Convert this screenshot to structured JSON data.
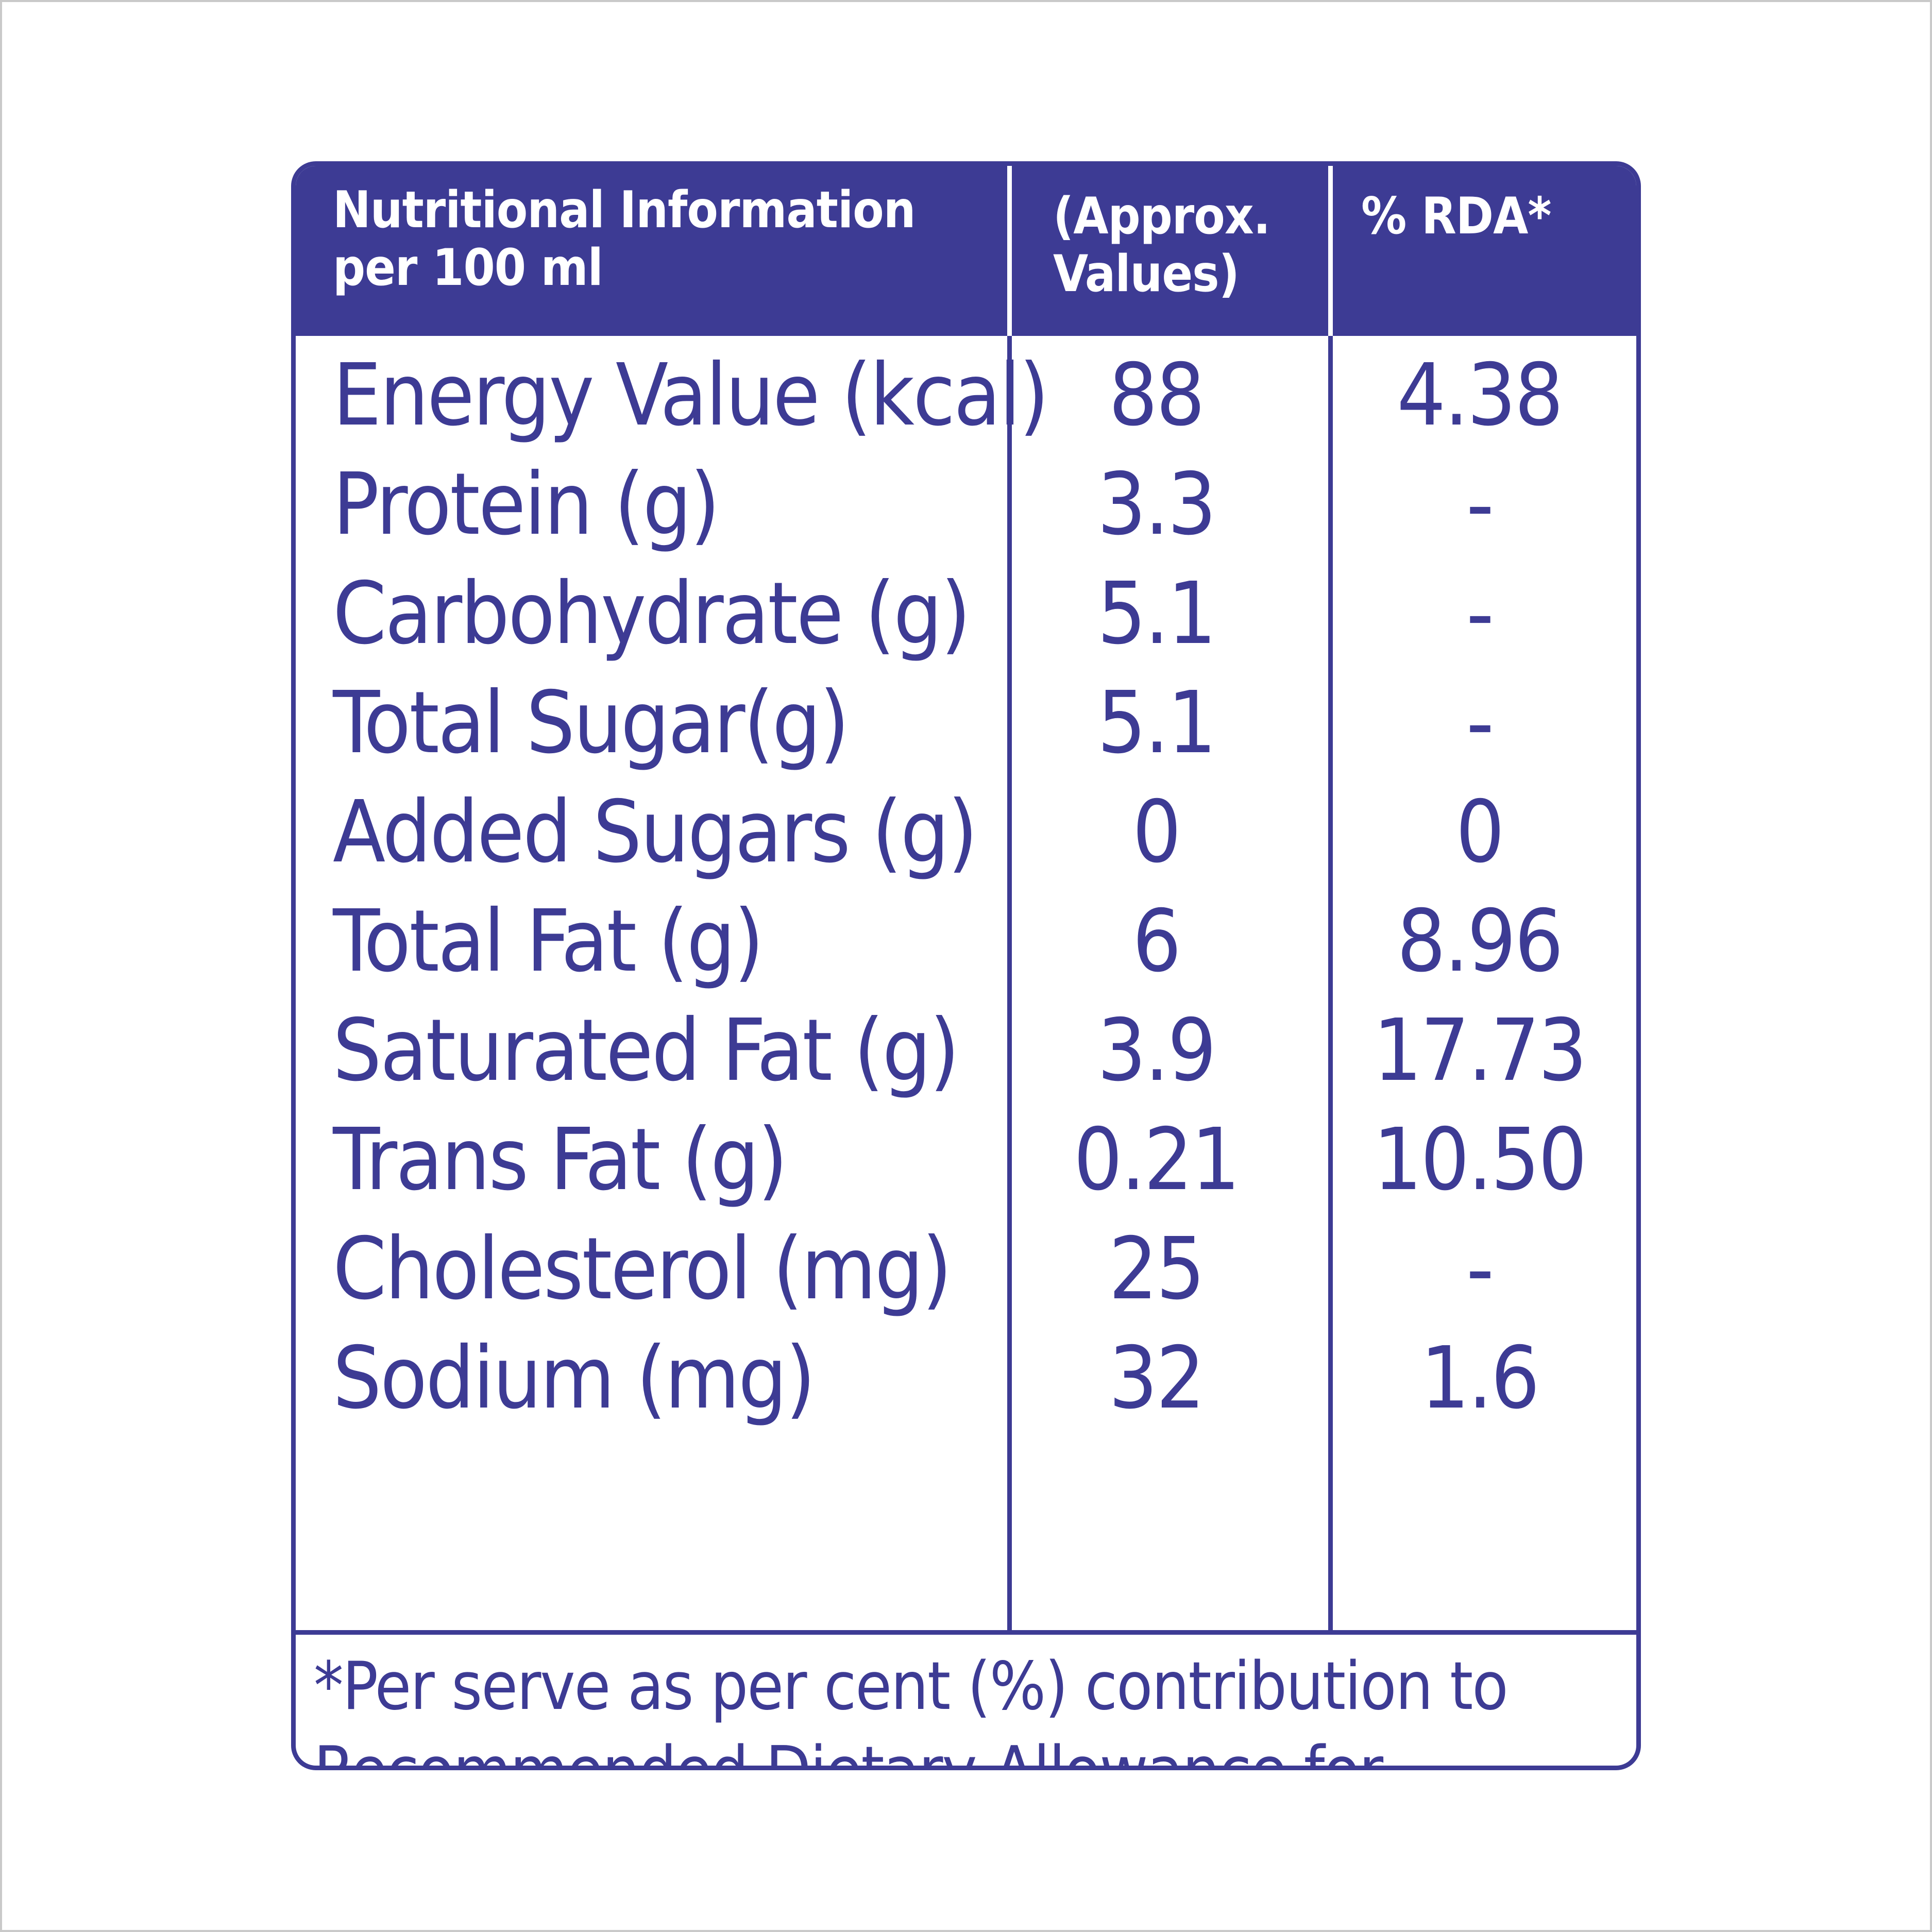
{
  "colors": {
    "brand": "#3d3b94",
    "header_text": "#ffffff",
    "background": "#ffffff"
  },
  "header": {
    "col1_line1": "Nutritional Information",
    "col1_line2": "per 100 ml",
    "col2_line1": "(Approx.",
    "col2_line2": "Values)",
    "col3": "% RDA*"
  },
  "rows": [
    {
      "name": "Energy Value (kcal)",
      "value": "88",
      "rda": "4.38"
    },
    {
      "name": "Protein (g)",
      "value": "3.3",
      "rda": "-"
    },
    {
      "name": "Carbohydrate (g)",
      "value": "5.1",
      "rda": "-"
    },
    {
      "name": "Total Sugar(g)",
      "value": "5.1",
      "rda": "-"
    },
    {
      "name": "Added Sugars (g)",
      "value": "0",
      "rda": "0"
    },
    {
      "name": "Total Fat (g)",
      "value": "6",
      "rda": "8.96"
    },
    {
      "name": "Saturated Fat (g)",
      "value": "3.9",
      "rda": "17.73"
    },
    {
      "name": "Trans Fat (g)",
      "value": "0.21",
      "rda": "10.50"
    },
    {
      "name": "Cholesterol (mg)",
      "value": "25",
      "rda": "-"
    },
    {
      "name": "Sodium (mg)",
      "value": "32",
      "rda": "1.6"
    }
  ],
  "footnote": "*Per serve as per cent (%) contribution to Recommended Dietary Allowance for average adult per day."
}
